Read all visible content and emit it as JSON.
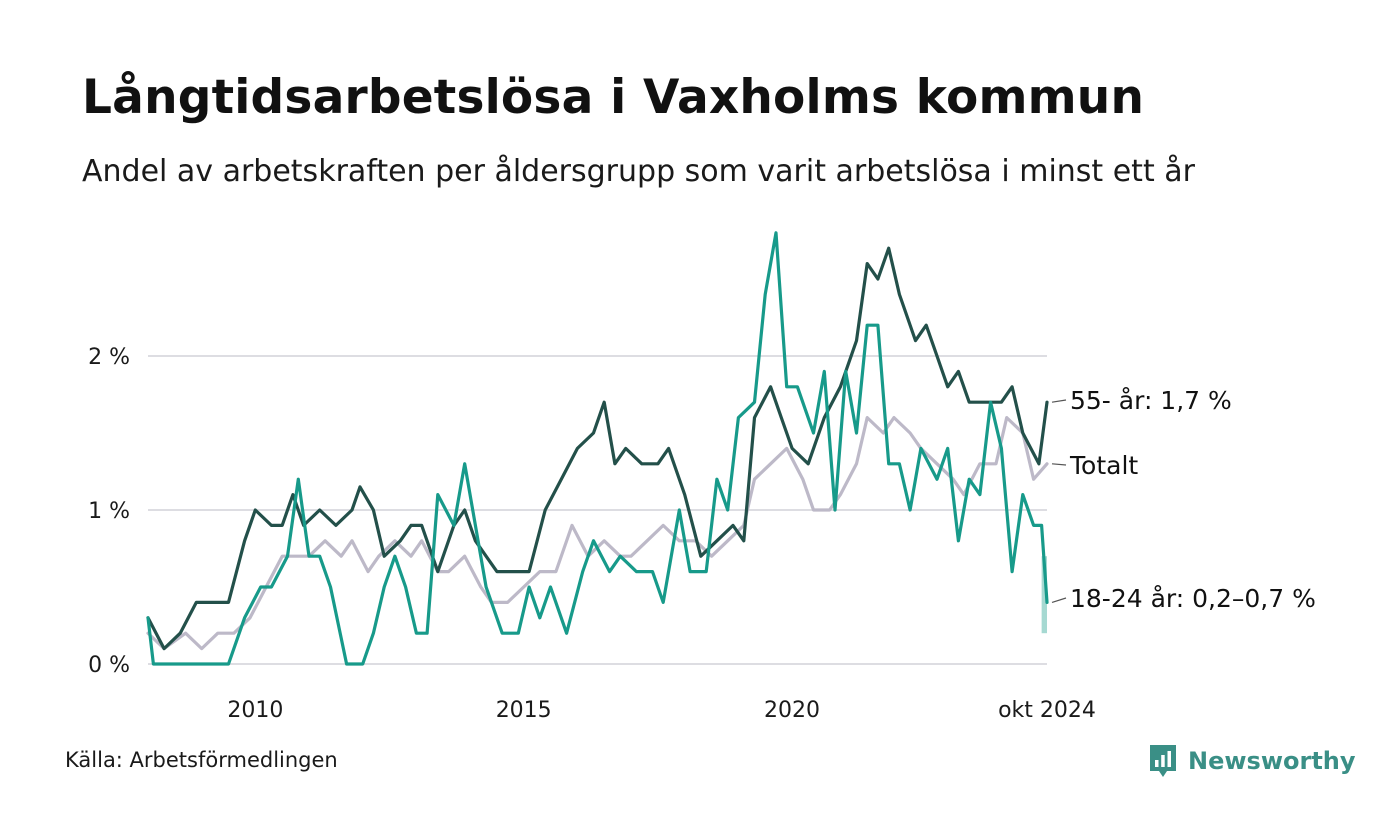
{
  "header": {
    "title": "Långtidsarbetslösa i Vaxholms kommun",
    "subtitle": "Andel av arbetskraften per åldersgrupp som varit arbetslösa i minst ett år"
  },
  "footer": {
    "source": "Källa: Arbetsförmedlingen",
    "brand": "Newsworthy"
  },
  "colors": {
    "s55": "#23504a",
    "total": "#bdb9c8",
    "s1824": "#179a8a",
    "band": "#a6d9d2",
    "grid": "#dddde2"
  },
  "chart_data": {
    "type": "line",
    "title": "Långtidsarbetslösa i Vaxholms kommun",
    "subtitle": "Andel av arbetskraften per åldersgrupp som varit arbetslösa i minst ett år",
    "xlabel": "",
    "ylabel": "",
    "x_range": [
      2008.0,
      2024.75
    ],
    "y_range": [
      0,
      2.8
    ],
    "y_ticks": [
      {
        "value": 0,
        "label": "0 %"
      },
      {
        "value": 1,
        "label": "1 %"
      },
      {
        "value": 2,
        "label": "2 %"
      }
    ],
    "x_ticks": [
      {
        "value": 2010,
        "label": "2010"
      },
      {
        "value": 2015,
        "label": "2015"
      },
      {
        "value": 2020,
        "label": "2020"
      },
      {
        "value": 2024.75,
        "label": "okt 2024"
      }
    ],
    "grid": true,
    "series": [
      {
        "key": "total",
        "name": "Totalt",
        "label": "Totalt",
        "points": [
          [
            2008.0,
            0.2
          ],
          [
            2008.3,
            0.1
          ],
          [
            2008.7,
            0.2
          ],
          [
            2009.0,
            0.1
          ],
          [
            2009.3,
            0.2
          ],
          [
            2009.6,
            0.2
          ],
          [
            2009.9,
            0.3
          ],
          [
            2010.2,
            0.5
          ],
          [
            2010.5,
            0.7
          ],
          [
            2010.8,
            0.7
          ],
          [
            2011.0,
            0.7
          ],
          [
            2011.3,
            0.8
          ],
          [
            2011.6,
            0.7
          ],
          [
            2011.8,
            0.8
          ],
          [
            2012.1,
            0.6
          ],
          [
            2012.3,
            0.7
          ],
          [
            2012.6,
            0.8
          ],
          [
            2012.9,
            0.7
          ],
          [
            2013.1,
            0.8
          ],
          [
            2013.4,
            0.6
          ],
          [
            2013.6,
            0.6
          ],
          [
            2013.9,
            0.7
          ],
          [
            2014.2,
            0.5
          ],
          [
            2014.4,
            0.4
          ],
          [
            2014.7,
            0.4
          ],
          [
            2015.0,
            0.5
          ],
          [
            2015.3,
            0.6
          ],
          [
            2015.6,
            0.6
          ],
          [
            2015.9,
            0.9
          ],
          [
            2016.2,
            0.7
          ],
          [
            2016.5,
            0.8
          ],
          [
            2016.8,
            0.7
          ],
          [
            2017.0,
            0.7
          ],
          [
            2017.3,
            0.8
          ],
          [
            2017.6,
            0.9
          ],
          [
            2017.9,
            0.8
          ],
          [
            2018.2,
            0.8
          ],
          [
            2018.5,
            0.7
          ],
          [
            2018.8,
            0.8
          ],
          [
            2019.1,
            0.9
          ],
          [
            2019.3,
            1.2
          ],
          [
            2019.6,
            1.3
          ],
          [
            2019.9,
            1.4
          ],
          [
            2020.2,
            1.2
          ],
          [
            2020.4,
            1.0
          ],
          [
            2020.7,
            1.0
          ],
          [
            2020.9,
            1.1
          ],
          [
            2021.2,
            1.3
          ],
          [
            2021.4,
            1.6
          ],
          [
            2021.7,
            1.5
          ],
          [
            2021.9,
            1.6
          ],
          [
            2022.2,
            1.5
          ],
          [
            2022.4,
            1.4
          ],
          [
            2022.7,
            1.3
          ],
          [
            2023.0,
            1.2
          ],
          [
            2023.2,
            1.1
          ],
          [
            2023.5,
            1.3
          ],
          [
            2023.8,
            1.3
          ],
          [
            2024.0,
            1.6
          ],
          [
            2024.3,
            1.5
          ],
          [
            2024.5,
            1.2
          ],
          [
            2024.75,
            1.3
          ]
        ]
      },
      {
        "key": "s55",
        "name": "55- år",
        "label": "55- år: 1,7 %",
        "points": [
          [
            2008.0,
            0.3
          ],
          [
            2008.3,
            0.1
          ],
          [
            2008.6,
            0.2
          ],
          [
            2008.9,
            0.4
          ],
          [
            2009.2,
            0.4
          ],
          [
            2009.5,
            0.4
          ],
          [
            2009.8,
            0.8
          ],
          [
            2010.0,
            1.0
          ],
          [
            2010.3,
            0.9
          ],
          [
            2010.5,
            0.9
          ],
          [
            2010.7,
            1.1
          ],
          [
            2010.9,
            0.9
          ],
          [
            2011.2,
            1.0
          ],
          [
            2011.5,
            0.9
          ],
          [
            2011.8,
            1.0
          ],
          [
            2011.95,
            1.15
          ],
          [
            2012.2,
            1.0
          ],
          [
            2012.4,
            0.7
          ],
          [
            2012.7,
            0.8
          ],
          [
            2012.9,
            0.9
          ],
          [
            2013.1,
            0.9
          ],
          [
            2013.4,
            0.6
          ],
          [
            2013.7,
            0.9
          ],
          [
            2013.9,
            1.0
          ],
          [
            2014.1,
            0.8
          ],
          [
            2014.3,
            0.7
          ],
          [
            2014.5,
            0.6
          ],
          [
            2014.8,
            0.6
          ],
          [
            2015.1,
            0.6
          ],
          [
            2015.4,
            1.0
          ],
          [
            2015.7,
            1.2
          ],
          [
            2016.0,
            1.4
          ],
          [
            2016.3,
            1.5
          ],
          [
            2016.5,
            1.7
          ],
          [
            2016.7,
            1.3
          ],
          [
            2016.9,
            1.4
          ],
          [
            2017.2,
            1.3
          ],
          [
            2017.5,
            1.3
          ],
          [
            2017.7,
            1.4
          ],
          [
            2018.0,
            1.1
          ],
          [
            2018.3,
            0.7
          ],
          [
            2018.6,
            0.8
          ],
          [
            2018.9,
            0.9
          ],
          [
            2019.1,
            0.8
          ],
          [
            2019.3,
            1.6
          ],
          [
            2019.6,
            1.8
          ],
          [
            2019.8,
            1.6
          ],
          [
            2020.0,
            1.4
          ],
          [
            2020.3,
            1.3
          ],
          [
            2020.6,
            1.6
          ],
          [
            2020.9,
            1.8
          ],
          [
            2021.2,
            2.1
          ],
          [
            2021.4,
            2.6
          ],
          [
            2021.6,
            2.5
          ],
          [
            2021.8,
            2.7
          ],
          [
            2022.0,
            2.4
          ],
          [
            2022.3,
            2.1
          ],
          [
            2022.5,
            2.2
          ],
          [
            2022.7,
            2.0
          ],
          [
            2022.9,
            1.8
          ],
          [
            2023.1,
            1.9
          ],
          [
            2023.3,
            1.7
          ],
          [
            2023.6,
            1.7
          ],
          [
            2023.9,
            1.7
          ],
          [
            2024.1,
            1.8
          ],
          [
            2024.3,
            1.5
          ],
          [
            2024.6,
            1.3
          ],
          [
            2024.75,
            1.7
          ]
        ]
      },
      {
        "key": "s1824",
        "name": "18-24 år",
        "label": "18-24 år: 0,2–0,7 %",
        "points": [
          [
            2008.0,
            0.3
          ],
          [
            2008.1,
            0.0
          ],
          [
            2009.2,
            0.0
          ],
          [
            2009.5,
            0.0
          ],
          [
            2009.8,
            0.3
          ],
          [
            2010.1,
            0.5
          ],
          [
            2010.3,
            0.5
          ],
          [
            2010.6,
            0.7
          ],
          [
            2010.8,
            1.2
          ],
          [
            2011.0,
            0.7
          ],
          [
            2011.2,
            0.7
          ],
          [
            2011.4,
            0.5
          ],
          [
            2011.7,
            0.0
          ],
          [
            2012.0,
            0.0
          ],
          [
            2012.2,
            0.2
          ],
          [
            2012.4,
            0.5
          ],
          [
            2012.6,
            0.7
          ],
          [
            2012.8,
            0.5
          ],
          [
            2013.0,
            0.2
          ],
          [
            2013.2,
            0.2
          ],
          [
            2013.4,
            1.1
          ],
          [
            2013.7,
            0.9
          ],
          [
            2013.9,
            1.3
          ],
          [
            2014.1,
            0.9
          ],
          [
            2014.3,
            0.5
          ],
          [
            2014.6,
            0.2
          ],
          [
            2014.9,
            0.2
          ],
          [
            2015.1,
            0.5
          ],
          [
            2015.3,
            0.3
          ],
          [
            2015.5,
            0.5
          ],
          [
            2015.8,
            0.2
          ],
          [
            2016.1,
            0.6
          ],
          [
            2016.3,
            0.8
          ],
          [
            2016.6,
            0.6
          ],
          [
            2016.8,
            0.7
          ],
          [
            2017.1,
            0.6
          ],
          [
            2017.4,
            0.6
          ],
          [
            2017.6,
            0.4
          ],
          [
            2017.9,
            1.0
          ],
          [
            2018.1,
            0.6
          ],
          [
            2018.4,
            0.6
          ],
          [
            2018.6,
            1.2
          ],
          [
            2018.8,
            1.0
          ],
          [
            2019.0,
            1.6
          ],
          [
            2019.3,
            1.7
          ],
          [
            2019.5,
            2.4
          ],
          [
            2019.7,
            2.8
          ],
          [
            2019.9,
            1.8
          ],
          [
            2020.1,
            1.8
          ],
          [
            2020.4,
            1.5
          ],
          [
            2020.6,
            1.9
          ],
          [
            2020.8,
            1.0
          ],
          [
            2021.0,
            1.9
          ],
          [
            2021.2,
            1.5
          ],
          [
            2021.4,
            2.2
          ],
          [
            2021.6,
            2.2
          ],
          [
            2021.8,
            1.3
          ],
          [
            2022.0,
            1.3
          ],
          [
            2022.2,
            1.0
          ],
          [
            2022.4,
            1.4
          ],
          [
            2022.7,
            1.2
          ],
          [
            2022.9,
            1.4
          ],
          [
            2023.1,
            0.8
          ],
          [
            2023.3,
            1.2
          ],
          [
            2023.5,
            1.1
          ],
          [
            2023.7,
            1.7
          ],
          [
            2023.9,
            1.4
          ],
          [
            2024.1,
            0.6
          ],
          [
            2024.3,
            1.1
          ],
          [
            2024.5,
            0.9
          ],
          [
            2024.65,
            0.9
          ],
          [
            2024.75,
            0.4
          ]
        ],
        "band": {
          "low": 0.2,
          "high": 0.7,
          "x_start": 2024.65,
          "x_end": 2024.75
        }
      }
    ]
  }
}
